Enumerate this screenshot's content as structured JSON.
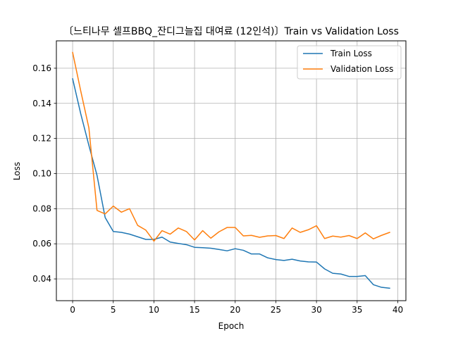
{
  "chart_data": {
    "type": "line",
    "title": "〔느티나무 셀프BBQ_잔디그늘집 대여료 (12인석)〕Train vs Validation Loss",
    "xlabel": "Epoch",
    "ylabel": "Loss",
    "xlim": [
      -2,
      41
    ],
    "ylim": [
      0.0276,
      0.1756
    ],
    "xticks": [
      0,
      5,
      10,
      15,
      20,
      25,
      30,
      35,
      40
    ],
    "yticks": [
      0.04,
      0.06,
      0.08,
      0.1,
      0.12,
      0.14,
      0.16
    ],
    "ytick_labels": [
      "0.04",
      "0.06",
      "0.08",
      "0.10",
      "0.12",
      "0.14",
      "0.16"
    ],
    "grid": true,
    "legend_position": "upper right",
    "x": [
      0,
      1,
      2,
      3,
      4,
      5,
      6,
      7,
      8,
      9,
      10,
      11,
      12,
      13,
      14,
      15,
      16,
      17,
      18,
      19,
      20,
      21,
      22,
      23,
      24,
      25,
      26,
      27,
      28,
      29,
      30,
      31,
      32,
      33,
      34,
      35,
      36,
      37,
      38,
      39
    ],
    "series": [
      {
        "name": "Train Loss",
        "color": "#1f77b4",
        "values": [
          0.154,
          0.134,
          0.116,
          0.099,
          0.075,
          0.067,
          0.0665,
          0.0655,
          0.064,
          0.0625,
          0.0625,
          0.0638,
          0.061,
          0.0602,
          0.0595,
          0.058,
          0.0578,
          0.0575,
          0.0568,
          0.056,
          0.0572,
          0.0563,
          0.0542,
          0.0542,
          0.052,
          0.051,
          0.0505,
          0.0512,
          0.0502,
          0.0497,
          0.0496,
          0.0457,
          0.0432,
          0.0428,
          0.0414,
          0.0414,
          0.0419,
          0.0367,
          0.0352,
          0.0347
        ]
      },
      {
        "name": "Validation Loss",
        "color": "#ff7f0e",
        "values": [
          0.169,
          0.147,
          0.126,
          0.079,
          0.077,
          0.0815,
          0.078,
          0.08,
          0.0705,
          0.0678,
          0.0615,
          0.0675,
          0.0655,
          0.069,
          0.067,
          0.0622,
          0.0675,
          0.0632,
          0.0668,
          0.0693,
          0.0693,
          0.0645,
          0.0648,
          0.0637,
          0.0645,
          0.0647,
          0.063,
          0.069,
          0.0665,
          0.068,
          0.0703,
          0.063,
          0.0644,
          0.0638,
          0.0647,
          0.063,
          0.0662,
          0.0628,
          0.0648,
          0.0665
        ]
      }
    ]
  }
}
